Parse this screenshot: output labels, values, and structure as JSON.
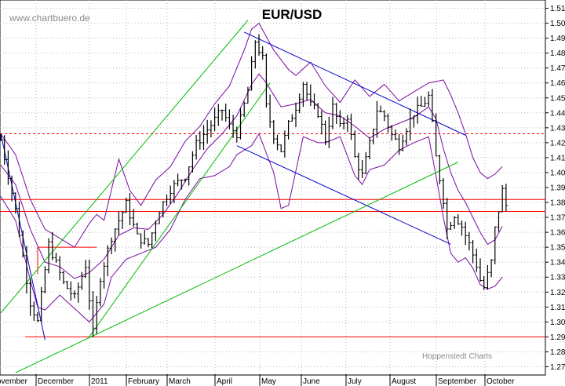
{
  "chart_data": {
    "type": "candlestick",
    "title": "EUR/USD",
    "watermark": "www.chartbuero.de",
    "credit": "Hoppenstedt Charts",
    "y_axis": {
      "side": "right",
      "min": 1.265,
      "max": 1.515,
      "ticks": [
        "1.27",
        "1.28",
        "1.29",
        "1.30",
        "1.31",
        "1.32",
        "1.33",
        "1.34",
        "1.35",
        "1.36",
        "1.37",
        "1.38",
        "1.39",
        "1.40",
        "1.41",
        "1.42",
        "1.43",
        "1.44",
        "1.45",
        "1.46",
        "1.47",
        "1.48",
        "1.49",
        "1.50",
        "1.51"
      ]
    },
    "x_axis": {
      "months": [
        "ovember",
        "December",
        "2011",
        "February",
        "March",
        "April",
        "May",
        "June",
        "July",
        "August",
        "September",
        "October"
      ]
    },
    "grid": "dotted",
    "colors": {
      "price": "#000000",
      "bands": "#7a0aa0",
      "support_resistance": "#ff0000",
      "trend_blue": "#0000cc",
      "trend_green": "#00bb00",
      "grid": "#b8b8b8"
    },
    "horizontal_levels": [
      {
        "value": 1.382,
        "style": "solid"
      },
      {
        "value": 1.374,
        "style": "solid"
      },
      {
        "value": 1.29,
        "style": "solid"
      },
      {
        "value": 1.426,
        "style": "dashed"
      },
      {
        "value": 1.35,
        "style": "short",
        "from_day": 10,
        "to_day": 26
      }
    ],
    "trendlines": [
      {
        "color": "blue",
        "from": [
          0,
          1.426
        ],
        "to": [
          12,
          1.288
        ]
      },
      {
        "color": "blue",
        "from": [
          66,
          1.494
        ],
        "to": [
          126,
          1.425
        ]
      },
      {
        "color": "blue",
        "from": [
          64,
          1.418
        ],
        "to": [
          122,
          1.352
        ]
      },
      {
        "color": "green",
        "from": [
          0,
          1.306
        ],
        "to": [
          67,
          1.502
        ]
      },
      {
        "color": "green",
        "from": [
          24,
          1.29
        ],
        "to": [
          73,
          1.46
        ]
      },
      {
        "color": "green",
        "from": [
          4,
          1.266
        ],
        "to": [
          124,
          1.407
        ]
      }
    ],
    "price_anchors": [
      [
        0,
        1.422
      ],
      [
        4,
        1.375
      ],
      [
        8,
        1.313
      ],
      [
        10,
        1.3
      ],
      [
        13,
        1.352
      ],
      [
        17,
        1.326
      ],
      [
        20,
        1.316
      ],
      [
        23,
        1.338
      ],
      [
        25,
        1.293
      ],
      [
        27,
        1.33
      ],
      [
        30,
        1.357
      ],
      [
        34,
        1.379
      ],
      [
        37,
        1.357
      ],
      [
        40,
        1.352
      ],
      [
        43,
        1.375
      ],
      [
        46,
        1.389
      ],
      [
        50,
        1.398
      ],
      [
        53,
        1.419
      ],
      [
        57,
        1.432
      ],
      [
        60,
        1.442
      ],
      [
        62,
        1.431
      ],
      [
        64,
        1.426
      ],
      [
        67,
        1.455
      ],
      [
        69,
        1.488
      ],
      [
        71,
        1.476
      ],
      [
        72,
        1.444
      ],
      [
        74,
        1.425
      ],
      [
        76,
        1.415
      ],
      [
        78,
        1.432
      ],
      [
        80,
        1.444
      ],
      [
        82,
        1.46
      ],
      [
        84,
        1.445
      ],
      [
        86,
        1.44
      ],
      [
        88,
        1.422
      ],
      [
        90,
        1.444
      ],
      [
        92,
        1.43
      ],
      [
        94,
        1.438
      ],
      [
        96,
        1.41
      ],
      [
        98,
        1.398
      ],
      [
        100,
        1.419
      ],
      [
        102,
        1.442
      ],
      [
        104,
        1.438
      ],
      [
        106,
        1.425
      ],
      [
        108,
        1.418
      ],
      [
        110,
        1.43
      ],
      [
        112,
        1.44
      ],
      [
        114,
        1.444
      ],
      [
        116,
        1.451
      ],
      [
        117,
        1.432
      ],
      [
        118,
        1.41
      ],
      [
        120,
        1.382
      ],
      [
        121,
        1.362
      ],
      [
        123,
        1.372
      ],
      [
        125,
        1.364
      ],
      [
        127,
        1.352
      ],
      [
        129,
        1.338
      ],
      [
        130,
        1.328
      ],
      [
        131,
        1.323
      ],
      [
        133,
        1.34
      ],
      [
        134,
        1.362
      ],
      [
        136,
        1.388
      ],
      [
        137,
        1.378
      ]
    ],
    "bollinger": {
      "upper": [
        [
          0,
          1.426
        ],
        [
          4,
          1.412
        ],
        [
          8,
          1.382
        ],
        [
          12,
          1.362
        ],
        [
          16,
          1.356
        ],
        [
          20,
          1.35
        ],
        [
          24,
          1.366
        ],
        [
          26,
          1.372
        ],
        [
          28,
          1.368
        ],
        [
          32,
          1.409
        ],
        [
          35,
          1.388
        ],
        [
          38,
          1.378
        ],
        [
          42,
          1.395
        ],
        [
          46,
          1.404
        ],
        [
          50,
          1.421
        ],
        [
          54,
          1.431
        ],
        [
          58,
          1.446
        ],
        [
          62,
          1.458
        ],
        [
          66,
          1.482
        ],
        [
          68,
          1.496
        ],
        [
          70,
          1.5
        ],
        [
          74,
          1.482
        ],
        [
          78,
          1.469
        ],
        [
          80,
          1.465
        ],
        [
          84,
          1.474
        ],
        [
          88,
          1.458
        ],
        [
          92,
          1.447
        ],
        [
          96,
          1.462
        ],
        [
          100,
          1.451
        ],
        [
          104,
          1.459
        ],
        [
          108,
          1.448
        ],
        [
          112,
          1.454
        ],
        [
          116,
          1.46
        ],
        [
          120,
          1.462
        ],
        [
          122,
          1.452
        ],
        [
          124,
          1.44
        ],
        [
          126,
          1.426
        ],
        [
          128,
          1.41
        ],
        [
          130,
          1.4
        ],
        [
          132,
          1.396
        ],
        [
          134,
          1.399
        ],
        [
          136,
          1.404
        ]
      ],
      "middle": [
        [
          0,
          1.405
        ],
        [
          4,
          1.392
        ],
        [
          8,
          1.362
        ],
        [
          12,
          1.34
        ],
        [
          16,
          1.337
        ],
        [
          20,
          1.329
        ],
        [
          24,
          1.333
        ],
        [
          28,
          1.342
        ],
        [
          32,
          1.358
        ],
        [
          36,
          1.363
        ],
        [
          40,
          1.362
        ],
        [
          44,
          1.372
        ],
        [
          48,
          1.386
        ],
        [
          52,
          1.402
        ],
        [
          56,
          1.416
        ],
        [
          60,
          1.426
        ],
        [
          64,
          1.438
        ],
        [
          68,
          1.459
        ],
        [
          70,
          1.466
        ],
        [
          72,
          1.46
        ],
        [
          76,
          1.444
        ],
        [
          80,
          1.446
        ],
        [
          84,
          1.449
        ],
        [
          88,
          1.44
        ],
        [
          92,
          1.438
        ],
        [
          96,
          1.431
        ],
        [
          100,
          1.423
        ],
        [
          104,
          1.429
        ],
        [
          108,
          1.433
        ],
        [
          112,
          1.437
        ],
        [
          116,
          1.444
        ],
        [
          118,
          1.436
        ],
        [
          120,
          1.416
        ],
        [
          122,
          1.4
        ],
        [
          124,
          1.388
        ],
        [
          126,
          1.38
        ],
        [
          128,
          1.37
        ],
        [
          130,
          1.36
        ],
        [
          132,
          1.352
        ],
        [
          134,
          1.355
        ],
        [
          136,
          1.364
        ]
      ],
      "lower": [
        [
          0,
          1.384
        ],
        [
          4,
          1.368
        ],
        [
          8,
          1.328
        ],
        [
          10,
          1.31
        ],
        [
          12,
          1.308
        ],
        [
          16,
          1.318
        ],
        [
          20,
          1.309
        ],
        [
          24,
          1.3
        ],
        [
          28,
          1.312
        ],
        [
          30,
          1.33
        ],
        [
          34,
          1.342
        ],
        [
          38,
          1.346
        ],
        [
          42,
          1.35
        ],
        [
          46,
          1.362
        ],
        [
          50,
          1.382
        ],
        [
          54,
          1.396
        ],
        [
          58,
          1.398
        ],
        [
          62,
          1.404
        ],
        [
          64,
          1.412
        ],
        [
          68,
          1.418
        ],
        [
          70,
          1.426
        ],
        [
          74,
          1.4
        ],
        [
          76,
          1.376
        ],
        [
          78,
          1.378
        ],
        [
          82,
          1.424
        ],
        [
          86,
          1.42
        ],
        [
          88,
          1.42
        ],
        [
          92,
          1.424
        ],
        [
          96,
          1.398
        ],
        [
          98,
          1.392
        ],
        [
          100,
          1.402
        ],
        [
          104,
          1.405
        ],
        [
          108,
          1.415
        ],
        [
          112,
          1.42
        ],
        [
          116,
          1.424
        ],
        [
          118,
          1.398
        ],
        [
          120,
          1.37
        ],
        [
          122,
          1.346
        ],
        [
          124,
          1.34
        ],
        [
          126,
          1.343
        ],
        [
          128,
          1.336
        ],
        [
          130,
          1.325
        ],
        [
          132,
          1.322
        ],
        [
          134,
          1.324
        ],
        [
          136,
          1.33
        ]
      ]
    }
  }
}
